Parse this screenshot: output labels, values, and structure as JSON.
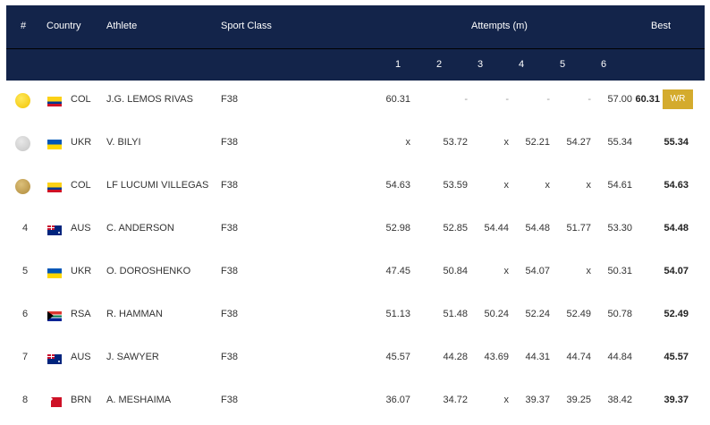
{
  "header": {
    "rank": "#",
    "country": "Country",
    "athlete": "Athlete",
    "sport_class": "Sport Class",
    "attempts": "Attempts (m)",
    "best": "Best",
    "attempt_numbers": [
      "1",
      "2",
      "3",
      "4",
      "5",
      "6"
    ]
  },
  "colors": {
    "header_bg": "#13244a",
    "gold": "#f2c300",
    "silver": "#c4c4c4",
    "bronze": "#b08a3a",
    "wr_badge": "#d4ab2d"
  },
  "rows": [
    {
      "rank": "",
      "medal": "gold",
      "flag": "colombia-flag",
      "country": "COL",
      "athlete": "J.G. LEMOS RIVAS",
      "class": "F38",
      "attempts": [
        "60.31",
        "-",
        "-",
        "-",
        "-",
        "57.00"
      ],
      "best": "60.31",
      "record": "WR"
    },
    {
      "rank": "",
      "medal": "silver",
      "flag": "ukraine-flag",
      "country": "UKR",
      "athlete": "V. BILYI",
      "class": "F38",
      "attempts": [
        "x",
        "53.72",
        "x",
        "52.21",
        "54.27",
        "55.34"
      ],
      "best": "55.34",
      "record": ""
    },
    {
      "rank": "",
      "medal": "bronze",
      "flag": "colombia-flag",
      "country": "COL",
      "athlete": "LF LUCUMI VILLEGAS",
      "class": "F38",
      "attempts": [
        "54.63",
        "53.59",
        "x",
        "x",
        "x",
        "54.61"
      ],
      "best": "54.63",
      "record": ""
    },
    {
      "rank": "4",
      "medal": "",
      "flag": "australia-flag",
      "country": "AUS",
      "athlete": "C. ANDERSON",
      "class": "F38",
      "attempts": [
        "52.98",
        "52.85",
        "54.44",
        "54.48",
        "51.77",
        "53.30"
      ],
      "best": "54.48",
      "record": ""
    },
    {
      "rank": "5",
      "medal": "",
      "flag": "ukraine-flag",
      "country": "UKR",
      "athlete": "O. DOROSHENKO",
      "class": "F38",
      "attempts": [
        "47.45",
        "50.84",
        "x",
        "54.07",
        "x",
        "50.31"
      ],
      "best": "54.07",
      "record": ""
    },
    {
      "rank": "6",
      "medal": "",
      "flag": "south-africa-flag",
      "country": "RSA",
      "athlete": "R. HAMMAN",
      "class": "F38",
      "attempts": [
        "51.13",
        "51.48",
        "50.24",
        "52.24",
        "52.49",
        "50.78"
      ],
      "best": "52.49",
      "record": ""
    },
    {
      "rank": "7",
      "medal": "",
      "flag": "australia-flag",
      "country": "AUS",
      "athlete": "J. SAWYER",
      "class": "F38",
      "attempts": [
        "45.57",
        "44.28",
        "43.69",
        "44.31",
        "44.74",
        "44.84"
      ],
      "best": "45.57",
      "record": ""
    },
    {
      "rank": "8",
      "medal": "",
      "flag": "bahrain-flag",
      "country": "BRN",
      "athlete": "A. MESHAIMA",
      "class": "F38",
      "attempts": [
        "36.07",
        "34.72",
        "x",
        "39.37",
        "39.25",
        "38.42"
      ],
      "best": "39.37",
      "record": ""
    }
  ]
}
